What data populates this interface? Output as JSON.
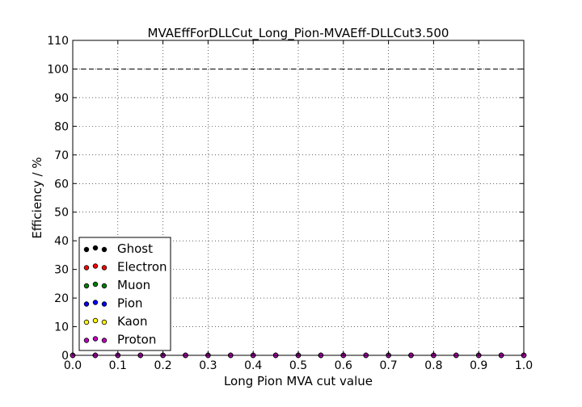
{
  "chart_data": {
    "type": "scatter",
    "title": "MVAEffForDLLCut_Long_Pion-MVAEff-DLLCut3.500",
    "xlabel": "Long Pion MVA cut value",
    "ylabel": "Efficiency / %",
    "xlim": [
      0.0,
      1.0
    ],
    "ylim": [
      0,
      110
    ],
    "xticks": [
      "0.0",
      "0.1",
      "0.2",
      "0.3",
      "0.4",
      "0.5",
      "0.6",
      "0.7",
      "0.8",
      "0.9",
      "1.0"
    ],
    "yticks": [
      "0",
      "10",
      "20",
      "30",
      "40",
      "50",
      "60",
      "70",
      "80",
      "90",
      "100",
      "110"
    ],
    "grid": true,
    "reference_line": 100,
    "legend_position": "lower-left",
    "x": [
      0.0,
      0.05,
      0.1,
      0.15,
      0.2,
      0.25,
      0.3,
      0.35,
      0.4,
      0.45,
      0.5,
      0.55,
      0.6,
      0.65,
      0.7,
      0.75,
      0.8,
      0.85,
      0.9,
      0.95,
      1.0
    ],
    "series": [
      {
        "name": "Ghost",
        "color": "#000000",
        "values": [
          0,
          0,
          0,
          0,
          0,
          0,
          0,
          0,
          0,
          0,
          0,
          0,
          0,
          0,
          0,
          0,
          0,
          0,
          0,
          0,
          0
        ]
      },
      {
        "name": "Electron",
        "color": "#ff0000",
        "values": [
          0,
          0,
          0,
          0,
          0,
          0,
          0,
          0,
          0,
          0,
          0,
          0,
          0,
          0,
          0,
          0,
          0,
          0,
          0,
          0,
          0
        ]
      },
      {
        "name": "Muon",
        "color": "#008000",
        "values": [
          0,
          0,
          0,
          0,
          0,
          0,
          0,
          0,
          0,
          0,
          0,
          0,
          0,
          0,
          0,
          0,
          0,
          0,
          0,
          0,
          0
        ]
      },
      {
        "name": "Pion",
        "color": "#0000ff",
        "values": [
          0,
          0,
          0,
          0,
          0,
          0,
          0,
          0,
          0,
          0,
          0,
          0,
          0,
          0,
          0,
          0,
          0,
          0,
          0,
          0,
          0
        ]
      },
      {
        "name": "Kaon",
        "color": "#ffff00",
        "values": [
          0,
          0,
          0,
          0,
          0,
          0,
          0,
          0,
          0,
          0,
          0,
          0,
          0,
          0,
          0,
          0,
          0,
          0,
          0,
          0,
          0
        ]
      },
      {
        "name": "Proton",
        "color": "#bf00bf",
        "values": [
          0,
          0,
          0,
          0,
          0,
          0,
          0,
          0,
          0,
          0,
          0,
          0,
          0,
          0,
          0,
          0,
          0,
          0,
          0,
          0,
          0
        ]
      }
    ]
  }
}
